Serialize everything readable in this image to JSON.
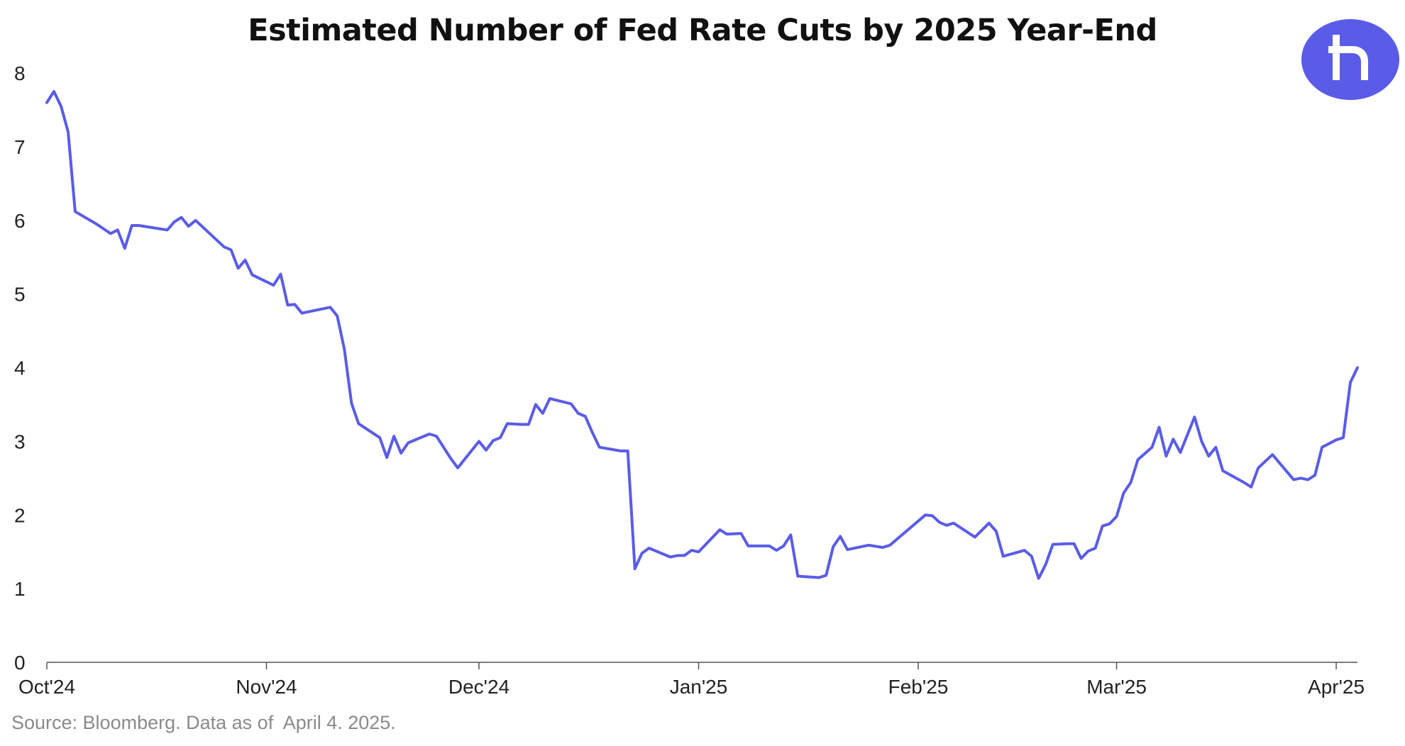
{
  "chart_data": {
    "type": "line",
    "title": "Estimated Number of Fed Rate Cuts by 2025 Year-End",
    "xlabel": "",
    "ylabel": "",
    "ylim": [
      0,
      8
    ],
    "yticks": [
      0,
      1,
      2,
      3,
      4,
      5,
      6,
      7,
      8
    ],
    "xlim": [
      "2024-10-01",
      "2025-04-04"
    ],
    "xticks": [
      {
        "date": "2024-10-01",
        "label": "Oct'24"
      },
      {
        "date": "2024-11-01",
        "label": "Nov'24"
      },
      {
        "date": "2024-12-01",
        "label": "Dec'24"
      },
      {
        "date": "2025-01-01",
        "label": "Jan'25"
      },
      {
        "date": "2025-02-01",
        "label": "Feb'25"
      },
      {
        "date": "2025-03-01",
        "label": "Mar'25"
      },
      {
        "date": "2025-04-01",
        "label": "Apr'25"
      }
    ],
    "grid": false,
    "line_color": "#5a5ce8",
    "series": [
      {
        "points": [
          [
            "2024-10-01",
            7.6
          ],
          [
            "2024-10-02",
            7.75
          ],
          [
            "2024-10-03",
            7.55
          ],
          [
            "2024-10-04",
            7.2
          ],
          [
            "2024-10-05",
            6.12
          ],
          [
            "2024-10-08",
            5.95
          ],
          [
            "2024-10-10",
            5.82
          ],
          [
            "2024-10-11",
            5.87
          ],
          [
            "2024-10-12",
            5.62
          ],
          [
            "2024-10-13",
            5.93
          ],
          [
            "2024-10-14",
            5.93
          ],
          [
            "2024-10-18",
            5.87
          ],
          [
            "2024-10-19",
            5.98
          ],
          [
            "2024-10-20",
            6.04
          ],
          [
            "2024-10-21",
            5.92
          ],
          [
            "2024-10-22",
            6.0
          ],
          [
            "2024-10-26",
            5.64
          ],
          [
            "2024-10-27",
            5.6
          ],
          [
            "2024-10-28",
            5.35
          ],
          [
            "2024-10-29",
            5.46
          ],
          [
            "2024-10-30",
            5.26
          ],
          [
            "2024-11-02",
            5.12
          ],
          [
            "2024-11-03",
            5.27
          ],
          [
            "2024-11-04",
            4.85
          ],
          [
            "2024-11-05",
            4.86
          ],
          [
            "2024-11-06",
            4.74
          ],
          [
            "2024-11-10",
            4.82
          ],
          [
            "2024-11-11",
            4.7
          ],
          [
            "2024-11-12",
            4.25
          ],
          [
            "2024-11-13",
            3.52
          ],
          [
            "2024-11-14",
            3.24
          ],
          [
            "2024-11-17",
            3.05
          ],
          [
            "2024-11-18",
            2.78
          ],
          [
            "2024-11-19",
            3.07
          ],
          [
            "2024-11-20",
            2.84
          ],
          [
            "2024-11-21",
            2.98
          ],
          [
            "2024-11-24",
            3.1
          ],
          [
            "2024-11-25",
            3.07
          ],
          [
            "2024-11-27",
            2.77
          ],
          [
            "2024-11-28",
            2.64
          ],
          [
            "2024-12-01",
            3.0
          ],
          [
            "2024-12-02",
            2.88
          ],
          [
            "2024-12-03",
            3.01
          ],
          [
            "2024-12-04",
            3.05
          ],
          [
            "2024-12-05",
            3.24
          ],
          [
            "2024-12-07",
            3.23
          ],
          [
            "2024-12-08",
            3.23
          ],
          [
            "2024-12-09",
            3.5
          ],
          [
            "2024-12-10",
            3.38
          ],
          [
            "2024-12-11",
            3.58
          ],
          [
            "2024-12-14",
            3.51
          ],
          [
            "2024-12-15",
            3.38
          ],
          [
            "2024-12-16",
            3.34
          ],
          [
            "2024-12-17",
            3.12
          ],
          [
            "2024-12-18",
            2.92
          ],
          [
            "2024-12-21",
            2.87
          ],
          [
            "2024-12-22",
            2.87
          ],
          [
            "2024-12-23",
            1.27
          ],
          [
            "2024-12-24",
            1.48
          ],
          [
            "2024-12-25",
            1.55
          ],
          [
            "2024-12-28",
            1.43
          ],
          [
            "2024-12-29",
            1.45
          ],
          [
            "2024-12-30",
            1.45
          ],
          [
            "2024-12-31",
            1.52
          ],
          [
            "2025-01-01",
            1.5
          ],
          [
            "2025-01-04",
            1.8
          ],
          [
            "2025-01-05",
            1.74
          ],
          [
            "2025-01-07",
            1.75
          ],
          [
            "2025-01-08",
            1.58
          ],
          [
            "2025-01-11",
            1.58
          ],
          [
            "2025-01-12",
            1.52
          ],
          [
            "2025-01-13",
            1.58
          ],
          [
            "2025-01-14",
            1.73
          ],
          [
            "2025-01-15",
            1.17
          ],
          [
            "2025-01-18",
            1.15
          ],
          [
            "2025-01-19",
            1.18
          ],
          [
            "2025-01-20",
            1.57
          ],
          [
            "2025-01-21",
            1.71
          ],
          [
            "2025-01-22",
            1.53
          ],
          [
            "2025-01-25",
            1.59
          ],
          [
            "2025-01-27",
            1.56
          ],
          [
            "2025-01-28",
            1.59
          ],
          [
            "2025-02-02",
            2.0
          ],
          [
            "2025-02-03",
            1.99
          ],
          [
            "2025-02-04",
            1.9
          ],
          [
            "2025-02-05",
            1.86
          ],
          [
            "2025-02-06",
            1.89
          ],
          [
            "2025-02-09",
            1.7
          ],
          [
            "2025-02-11",
            1.89
          ],
          [
            "2025-02-12",
            1.78
          ],
          [
            "2025-02-13",
            1.44
          ],
          [
            "2025-02-16",
            1.52
          ],
          [
            "2025-02-17",
            1.44
          ],
          [
            "2025-02-18",
            1.14
          ],
          [
            "2025-02-19",
            1.33
          ],
          [
            "2025-02-20",
            1.6
          ],
          [
            "2025-02-22",
            1.61
          ],
          [
            "2025-02-23",
            1.61
          ],
          [
            "2025-02-24",
            1.41
          ],
          [
            "2025-02-25",
            1.51
          ],
          [
            "2025-02-26",
            1.55
          ],
          [
            "2025-02-27",
            1.85
          ],
          [
            "2025-02-28",
            1.88
          ],
          [
            "2025-03-01",
            1.98
          ],
          [
            "2025-03-02",
            2.3
          ],
          [
            "2025-03-03",
            2.44
          ],
          [
            "2025-03-04",
            2.75
          ],
          [
            "2025-03-06",
            2.92
          ],
          [
            "2025-03-07",
            3.19
          ],
          [
            "2025-03-08",
            2.8
          ],
          [
            "2025-03-09",
            3.03
          ],
          [
            "2025-03-10",
            2.85
          ],
          [
            "2025-03-12",
            3.33
          ],
          [
            "2025-03-13",
            3.0
          ],
          [
            "2025-03-14",
            2.8
          ],
          [
            "2025-03-15",
            2.92
          ],
          [
            "2025-03-16",
            2.6
          ],
          [
            "2025-03-19",
            2.44
          ],
          [
            "2025-03-20",
            2.38
          ],
          [
            "2025-03-21",
            2.64
          ],
          [
            "2025-03-23",
            2.82
          ],
          [
            "2025-03-26",
            2.48
          ],
          [
            "2025-03-27",
            2.5
          ],
          [
            "2025-03-28",
            2.48
          ],
          [
            "2025-03-29",
            2.54
          ],
          [
            "2025-03-30",
            2.92
          ],
          [
            "2025-04-01",
            3.02
          ],
          [
            "2025-04-02",
            3.05
          ],
          [
            "2025-04-03",
            3.8
          ],
          [
            "2025-04-04",
            4.0
          ]
        ]
      }
    ]
  },
  "header": {
    "title": "Estimated Number of Fed Rate Cuts by 2025 Year-End",
    "logo_icon": "r-brand-logo-icon",
    "logo_color": "#5a5ce8"
  },
  "footer": {
    "source": "Source: Bloomberg. Data as of  April 4. 2025."
  }
}
